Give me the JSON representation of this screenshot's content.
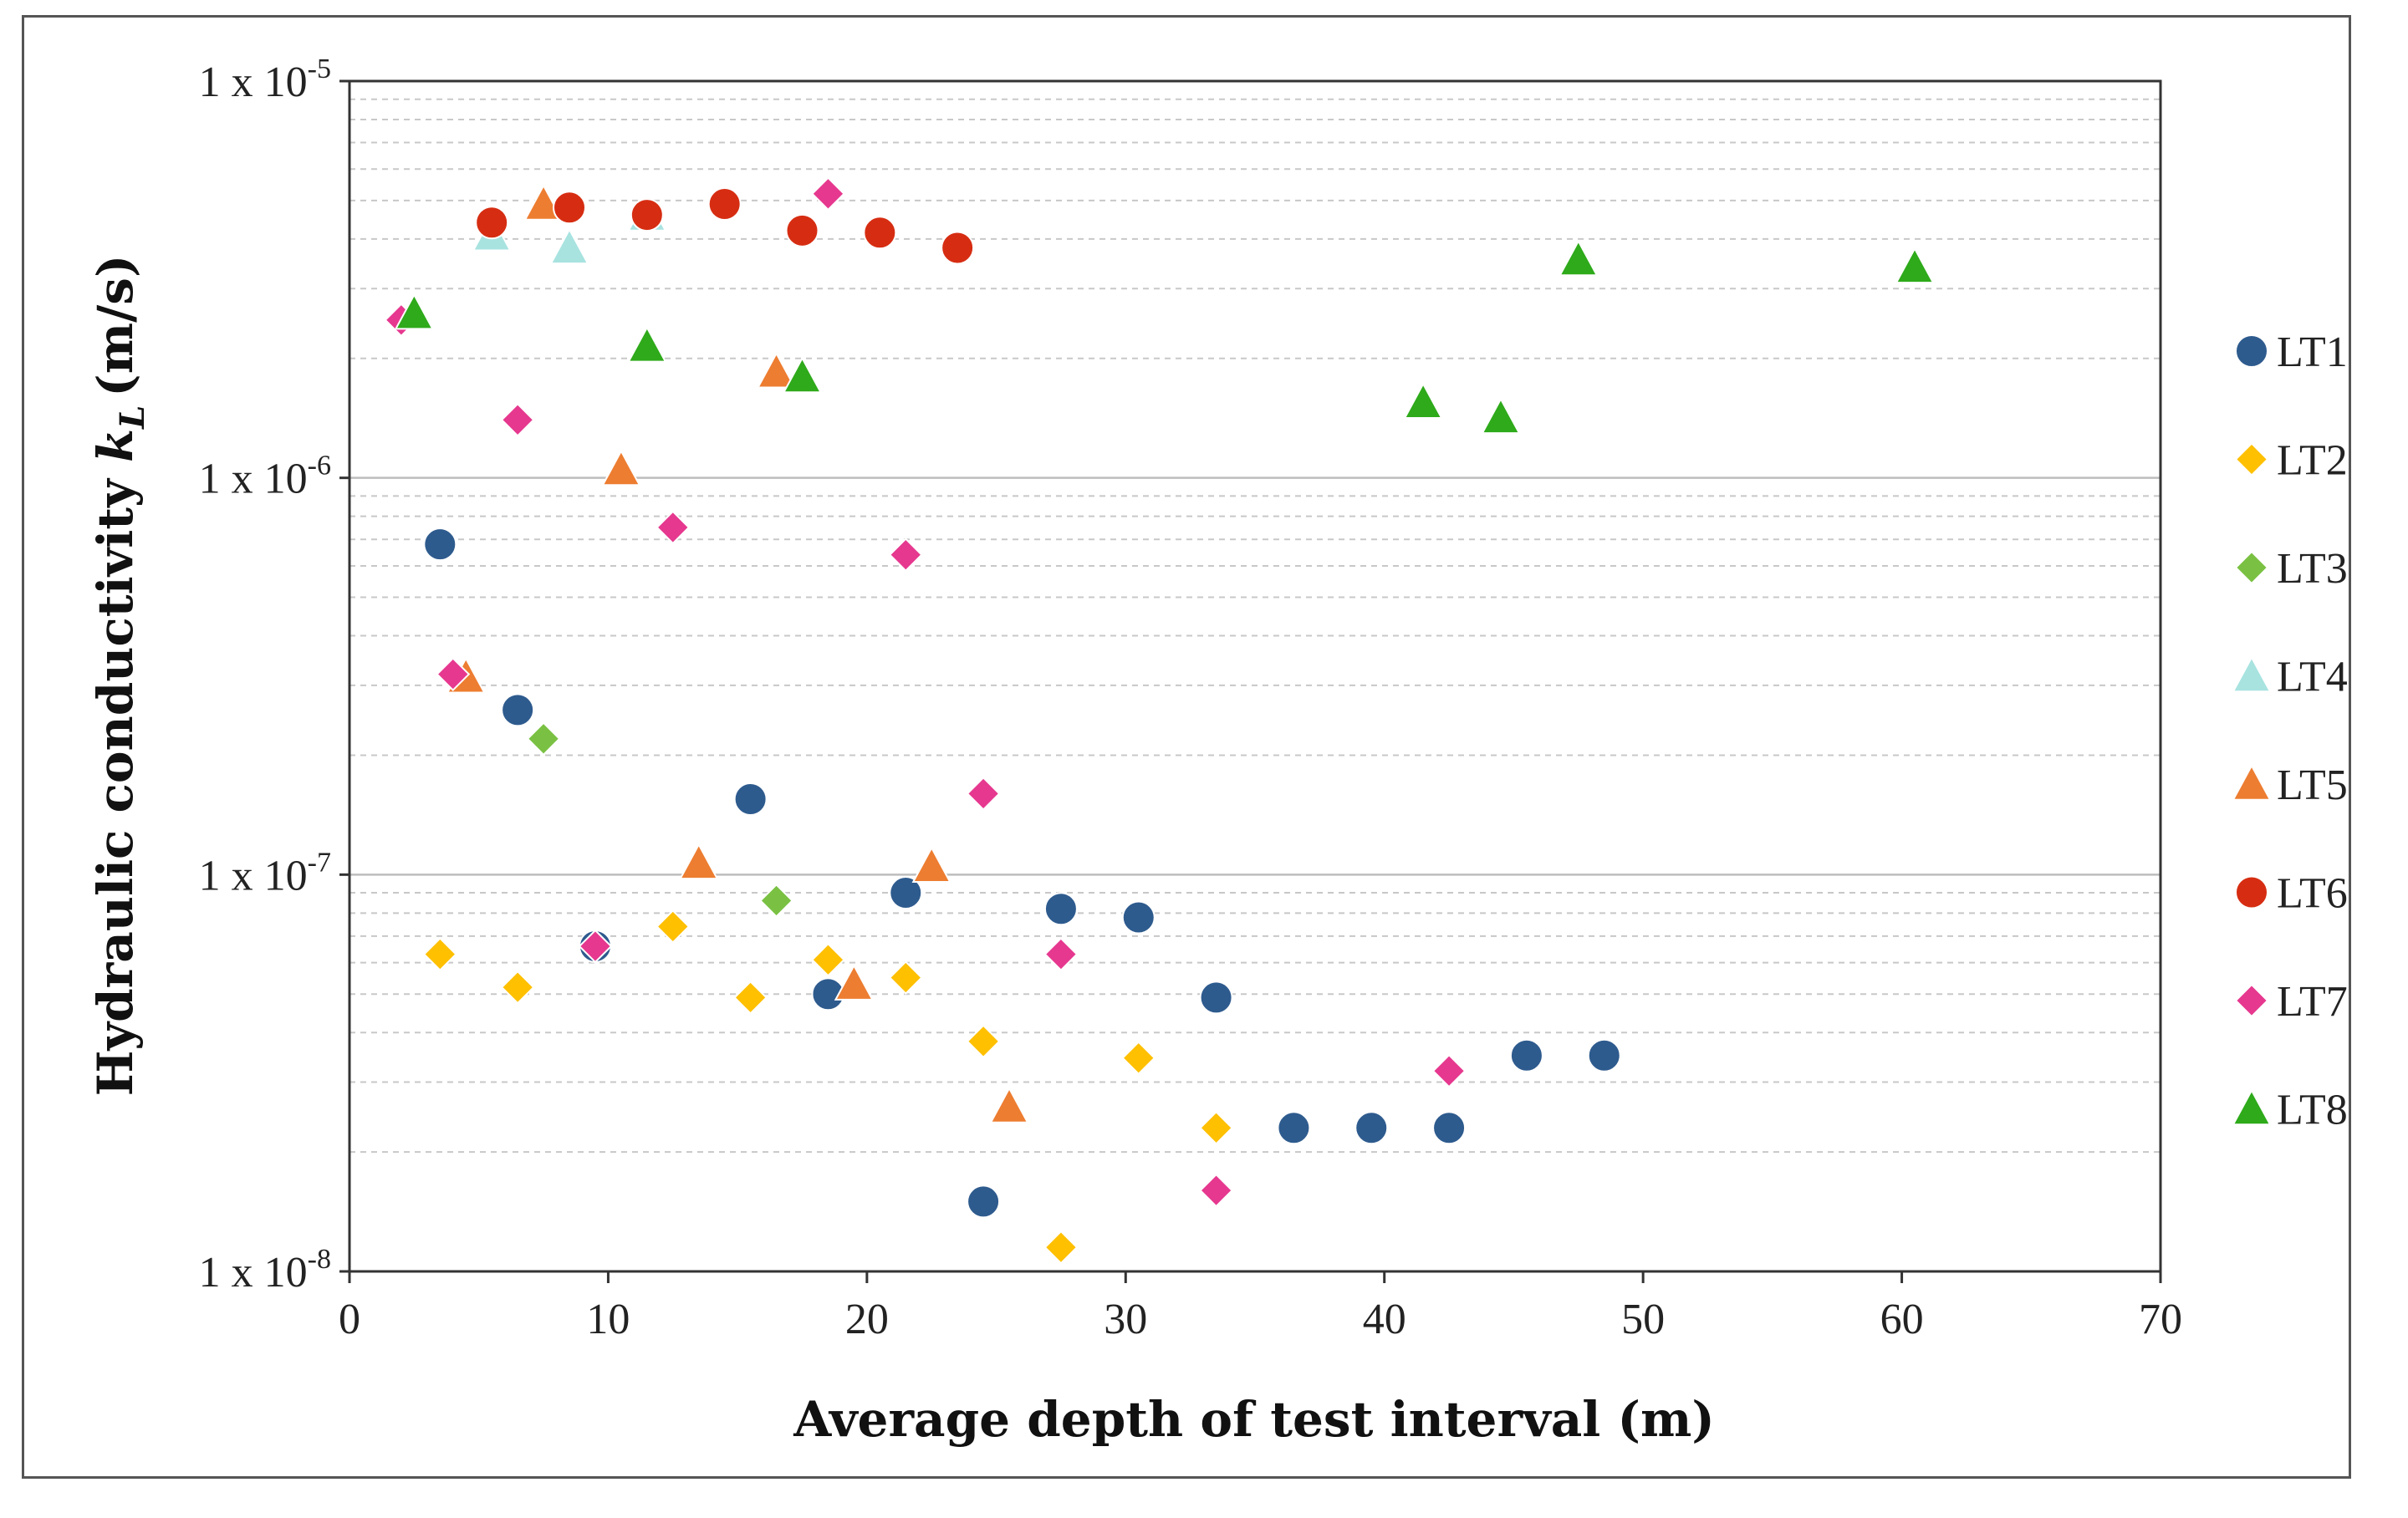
{
  "chart_data": {
    "type": "scatter",
    "title": "",
    "xlabel": "Average depth of test interval (m)",
    "ylabel": "Hydraulic conductivity",
    "ylabel_symbol": "k",
    "ylabel_subscript": "L",
    "ylabel_unit": "(m/s)",
    "x_scale": "linear",
    "y_scale": "log",
    "xlim": [
      0,
      70
    ],
    "ylim": [
      1e-08,
      1e-05
    ],
    "x_ticks": [
      "0",
      "10",
      "20",
      "30",
      "40",
      "50",
      "60",
      "70"
    ],
    "y_ticks": [
      {
        "base": "1 x 10",
        "exp": "-8",
        "value": 1e-08
      },
      {
        "base": "1 x 10",
        "exp": "-7",
        "value": 1e-07
      },
      {
        "base": "1 x 10",
        "exp": "-6",
        "value": 1e-06
      },
      {
        "base": "1 x 10",
        "exp": "-5",
        "value": 1e-05
      }
    ],
    "grid": {
      "major_y": true,
      "minor_y": "dashed",
      "x": false
    },
    "legend_position": "right",
    "series": [
      {
        "name": "LT1",
        "marker": "circle",
        "color": "#2e5b8e",
        "points": [
          [
            3.5,
            6.8e-07
          ],
          [
            6.5,
            2.6e-07
          ],
          [
            9.5,
            6.6e-08
          ],
          [
            15.5,
            1.55e-07
          ],
          [
            18.5,
            5e-08
          ],
          [
            21.5,
            9e-08
          ],
          [
            24.5,
            1.5e-08
          ],
          [
            27.5,
            8.2e-08
          ],
          [
            30.5,
            7.8e-08
          ],
          [
            33.5,
            4.9e-08
          ],
          [
            36.5,
            2.3e-08
          ],
          [
            39.5,
            2.3e-08
          ],
          [
            42.5,
            2.3e-08
          ],
          [
            45.5,
            3.5e-08
          ],
          [
            48.5,
            3.5e-08
          ]
        ]
      },
      {
        "name": "LT2",
        "marker": "diamond",
        "color": "#ffc000",
        "points": [
          [
            3.5,
            6.3e-08
          ],
          [
            6.5,
            5.2e-08
          ],
          [
            12.5,
            7.4e-08
          ],
          [
            15.5,
            4.9e-08
          ],
          [
            18.5,
            6.1e-08
          ],
          [
            21.5,
            5.5e-08
          ],
          [
            24.5,
            3.8e-08
          ],
          [
            27.5,
            1.15e-08
          ],
          [
            30.5,
            3.45e-08
          ],
          [
            33.5,
            2.3e-08
          ]
        ]
      },
      {
        "name": "LT3",
        "marker": "diamond",
        "color": "#7ac143",
        "points": [
          [
            7.5,
            2.2e-07
          ],
          [
            16.5,
            8.6e-08
          ]
        ]
      },
      {
        "name": "LT4",
        "marker": "triangle",
        "color": "#a8e3e0",
        "points": [
          [
            5.5,
            4.1e-06
          ],
          [
            8.5,
            3.8e-06
          ],
          [
            11.5,
            4.6e-06
          ]
        ]
      },
      {
        "name": "LT5",
        "marker": "triangle",
        "color": "#ed7d31",
        "points": [
          [
            4.5,
            3.15e-07
          ],
          [
            7.5,
            4.9e-06
          ],
          [
            10.5,
            1.05e-06
          ],
          [
            13.5,
            1.07e-07
          ],
          [
            16.5,
            1.85e-06
          ],
          [
            19.5,
            5.3e-08
          ],
          [
            22.5,
            1.05e-07
          ],
          [
            25.5,
            2.6e-08
          ]
        ]
      },
      {
        "name": "LT6",
        "marker": "circle",
        "color": "#d62d12",
        "points": [
          [
            5.5,
            4.4e-06
          ],
          [
            8.5,
            4.8e-06
          ],
          [
            11.5,
            4.6e-06
          ],
          [
            14.5,
            4.9e-06
          ],
          [
            17.5,
            4.2e-06
          ],
          [
            20.5,
            4.15e-06
          ],
          [
            23.5,
            3.8e-06
          ]
        ]
      },
      {
        "name": "LT7",
        "marker": "diamond",
        "color": "#e6388f",
        "points": [
          [
            2.0,
            2.5e-06
          ],
          [
            4.0,
            3.2e-07
          ],
          [
            6.5,
            1.4e-06
          ],
          [
            9.5,
            6.6e-08
          ],
          [
            12.5,
            7.5e-07
          ],
          [
            18.5,
            5.2e-06
          ],
          [
            21.5,
            6.4e-07
          ],
          [
            24.5,
            1.6e-07
          ],
          [
            27.5,
            6.3e-08
          ],
          [
            33.5,
            1.6e-08
          ],
          [
            42.5,
            3.2e-08
          ]
        ]
      },
      {
        "name": "LT8",
        "marker": "triangle",
        "color": "#2eaa1a",
        "points": [
          [
            2.5,
            2.6e-06
          ],
          [
            11.5,
            2.15e-06
          ],
          [
            17.5,
            1.8e-06
          ],
          [
            41.5,
            1.55e-06
          ],
          [
            44.5,
            1.42e-06
          ],
          [
            47.5,
            3.55e-06
          ],
          [
            60.5,
            3.4e-06
          ]
        ]
      }
    ]
  }
}
